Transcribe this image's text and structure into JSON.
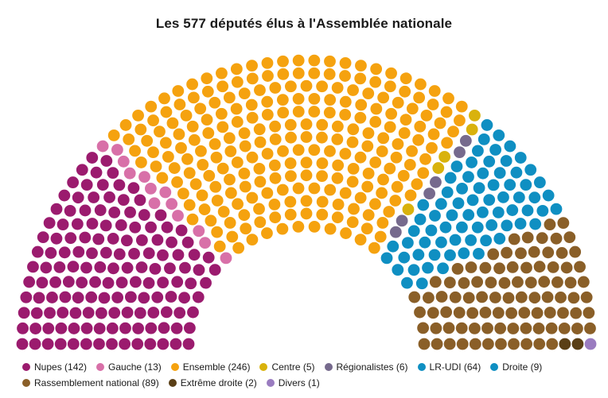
{
  "title": "Les 577 députés élus à l'Assemblée nationale",
  "chart_data": {
    "type": "parliament",
    "total_seats": 577,
    "title": "Les 577 députés élus à l'Assemblée nationale",
    "series": [
      {
        "name": "Nupes",
        "label": "Nupes (142)",
        "value": 142,
        "color": "#9b1b6e"
      },
      {
        "name": "Gauche",
        "label": "Gauche (13)",
        "value": 13,
        "color": "#d870a8"
      },
      {
        "name": "Ensemble",
        "label": "Ensemble (246)",
        "value": 246,
        "color": "#f5a20f"
      },
      {
        "name": "Centre",
        "label": "Centre (5)",
        "value": 5,
        "color": "#d9b20c"
      },
      {
        "name": "Régionalistes",
        "label": "Régionalistes (6)",
        "value": 6,
        "color": "#766a8d"
      },
      {
        "name": "LR-UDI",
        "label": "LR-UDI (64)",
        "value": 64,
        "color": "#0f8fc2"
      },
      {
        "name": "Droite",
        "label": "Droite (9)",
        "value": 9,
        "color": "#0f8fc2"
      },
      {
        "name": "Rassemblement national",
        "label": "Rassemblement national (89)",
        "value": 89,
        "color": "#8a5f28"
      },
      {
        "name": "Extrême droite",
        "label": "Extrême droite (2)",
        "value": 2,
        "color": "#5a3f16"
      },
      {
        "name": "Divers",
        "label": "Divers (1)",
        "value": 1,
        "color": "#9a7cc0"
      }
    ],
    "legend_placement": "bottom"
  }
}
